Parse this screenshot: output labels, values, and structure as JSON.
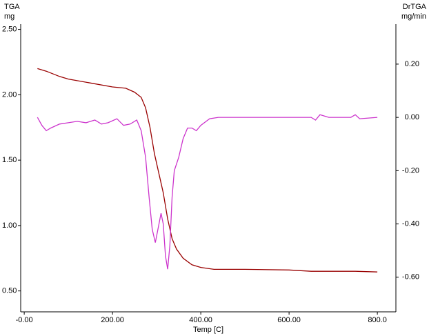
{
  "chart_data": {
    "type": "line",
    "y_label_top": "TGA",
    "y_unit": "mg",
    "y2_label_top": "DrTGA",
    "y2_unit": "mg/min",
    "x_label": "Temp [C]",
    "xlim": [
      -8,
      842
    ],
    "ylim": [
      0.34,
      2.54
    ],
    "y2lim": [
      -0.73,
      0.35
    ],
    "xticks": [
      {
        "value": 0,
        "label": "-0.00"
      },
      {
        "value": 200,
        "label": "200.00"
      },
      {
        "value": 400,
        "label": "400.00"
      },
      {
        "value": 600,
        "label": "600.00"
      },
      {
        "value": 800,
        "label": "800.0"
      }
    ],
    "yticks": [
      {
        "value": 0.5,
        "label": "0.50"
      },
      {
        "value": 1,
        "label": "1.00"
      },
      {
        "value": 1.5,
        "label": "1.50"
      },
      {
        "value": 2,
        "label": "2.00"
      },
      {
        "value": 2.5,
        "label": "2.50"
      }
    ],
    "y2ticks": [
      {
        "value": -0.6,
        "label": "-0.60"
      },
      {
        "value": -0.4,
        "label": "-0.40"
      },
      {
        "value": -0.2,
        "label": "-0.20"
      },
      {
        "value": 0,
        "label": "0.00"
      },
      {
        "value": 0.2,
        "label": "0.20"
      }
    ],
    "series": [
      {
        "name": "TGA",
        "color": "#990000",
        "x": [
          30,
          50,
          80,
          100,
          150,
          200,
          230,
          250,
          265,
          275,
          285,
          295,
          305,
          315,
          325,
          335,
          345,
          360,
          380,
          400,
          430,
          500,
          600,
          650,
          700,
          750,
          800
        ],
        "values": [
          2.2,
          2.18,
          2.14,
          2.12,
          2.09,
          2.06,
          2.05,
          2.02,
          1.98,
          1.9,
          1.75,
          1.55,
          1.4,
          1.25,
          1.05,
          0.9,
          0.82,
          0.75,
          0.7,
          0.68,
          0.665,
          0.665,
          0.66,
          0.65,
          0.65,
          0.65,
          0.645
        ]
      },
      {
        "name": "DrTGA",
        "color": "#cc33cc",
        "axis": "y2",
        "x": [
          30,
          40,
          50,
          60,
          80,
          100,
          120,
          140,
          160,
          175,
          190,
          210,
          225,
          240,
          255,
          265,
          275,
          283,
          290,
          297,
          303,
          310,
          315,
          320,
          325,
          330,
          335,
          340,
          350,
          360,
          370,
          380,
          390,
          400,
          420,
          440,
          500,
          600,
          650,
          660,
          670,
          690,
          740,
          750,
          760,
          800
        ],
        "values": [
          0,
          -0.03,
          -0.05,
          -0.04,
          -0.025,
          -0.02,
          -0.015,
          -0.02,
          -0.01,
          -0.025,
          -0.02,
          -0.005,
          -0.03,
          -0.025,
          -0.01,
          -0.05,
          -0.15,
          -0.3,
          -0.42,
          -0.47,
          -0.42,
          -0.36,
          -0.4,
          -0.52,
          -0.57,
          -0.48,
          -0.3,
          -0.2,
          -0.15,
          -0.08,
          -0.04,
          -0.04,
          -0.05,
          -0.03,
          -0.005,
          0,
          0,
          0,
          0,
          -0.01,
          0.01,
          0,
          0,
          0.01,
          -0.005,
          0
        ]
      }
    ]
  }
}
